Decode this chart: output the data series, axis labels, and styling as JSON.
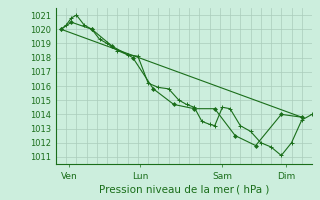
{
  "xlabel": "Pression niveau de la mer ( hPa )",
  "ylim": [
    1010.5,
    1021.5
  ],
  "xlim": [
    0,
    100
  ],
  "yticks": [
    1011,
    1012,
    1013,
    1014,
    1015,
    1016,
    1017,
    1018,
    1019,
    1020,
    1021
  ],
  "xtick_positions": [
    5,
    33,
    65,
    90
  ],
  "xtick_labels": [
    "Ven",
    "Lun",
    "Sam",
    "Dim"
  ],
  "bg_color": "#cceedd",
  "grid_color": "#aaccbb",
  "line_color": "#1a6e1a",
  "series1_x": [
    2,
    4,
    6,
    8,
    11,
    14,
    17,
    20,
    24,
    28,
    32,
    36,
    40,
    44,
    48,
    51,
    54,
    57,
    60,
    62,
    65,
    68,
    72,
    76,
    80,
    84,
    88,
    92,
    96,
    100
  ],
  "series1_y": [
    1020.0,
    1020.3,
    1020.8,
    1021.0,
    1020.3,
    1020.0,
    1019.3,
    1019.0,
    1018.5,
    1018.2,
    1018.1,
    1016.2,
    1015.9,
    1015.8,
    1015.0,
    1014.7,
    1014.5,
    1013.5,
    1013.3,
    1013.2,
    1014.5,
    1014.4,
    1013.2,
    1012.8,
    1012.0,
    1011.7,
    1011.1,
    1012.0,
    1013.6,
    1014.0
  ],
  "series2_x": [
    2,
    6,
    14,
    22,
    30,
    38,
    46,
    54,
    62,
    70,
    78,
    88,
    96
  ],
  "series2_y": [
    1020.0,
    1020.5,
    1020.0,
    1018.8,
    1018.0,
    1015.8,
    1014.7,
    1014.4,
    1014.4,
    1012.5,
    1011.8,
    1014.0,
    1013.8
  ],
  "trend_x": [
    2,
    96
  ],
  "trend_y": [
    1020.0,
    1013.8
  ],
  "grid_minor_step": 4
}
